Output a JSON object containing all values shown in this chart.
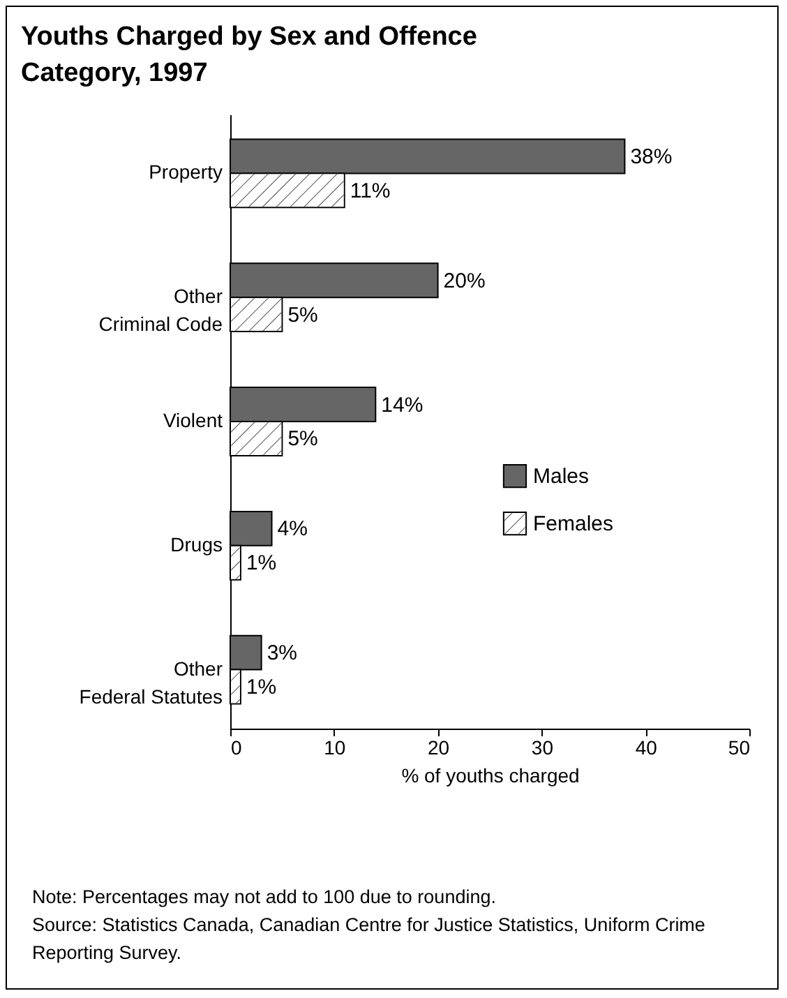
{
  "chart_data": {
    "type": "bar",
    "orientation": "horizontal",
    "title": "Youths Charged by Sex and Offence Category, 1997",
    "categories": [
      "Property",
      "Other\nCriminal Code",
      "Violent",
      "Drugs",
      "Other\nFederal Statutes"
    ],
    "series": [
      {
        "name": "Males",
        "color": "#666666",
        "values": [
          38,
          20,
          14,
          4,
          3
        ],
        "value_labels": [
          "38%",
          "20%",
          "14%",
          "4%",
          "3%"
        ]
      },
      {
        "name": "Females",
        "color": "#ffffff",
        "values": [
          11,
          5,
          5,
          1,
          1
        ],
        "value_labels": [
          "11%",
          "5%",
          "5%",
          "1%",
          "1%"
        ]
      }
    ],
    "xlabel": "% of youths charged",
    "xlim": [
      0,
      50
    ],
    "xticks": [
      0,
      10,
      20,
      30,
      40,
      50
    ],
    "legend": "right",
    "annotations": [
      "Note:  Percentages may not add to 100 due to rounding.",
      "Source:  Statistics Canada, Canadian Centre for Justice Statistics, Uniform Crime Reporting Survey."
    ]
  }
}
